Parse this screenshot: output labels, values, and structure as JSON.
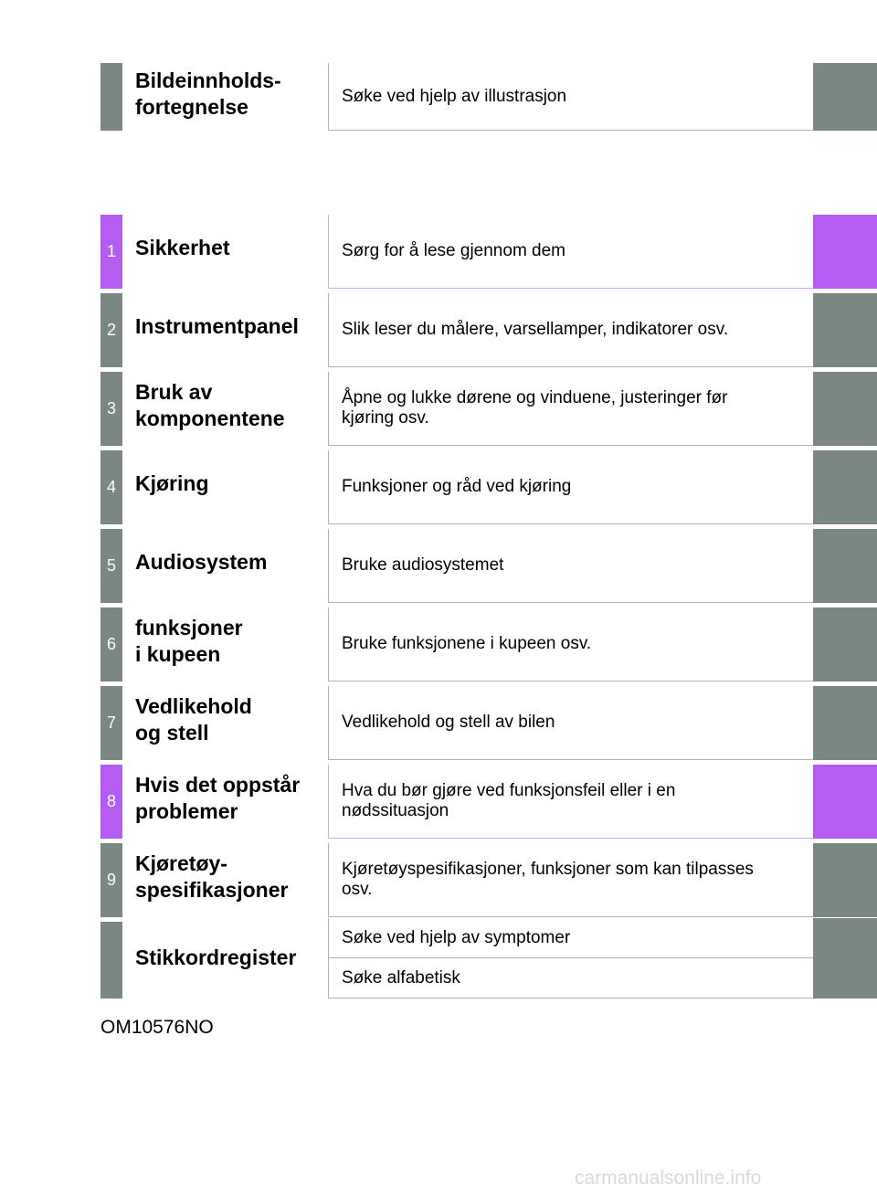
{
  "header": {
    "title": "Bildeinnholds-\nfortegnelse",
    "desc": "Søke ved hjelp av illustrasjon"
  },
  "chapters": [
    {
      "num": "1",
      "title": "Sikkerhet",
      "desc": "Sørg for å lese gjennom dem",
      "accent": true
    },
    {
      "num": "2",
      "title": "Instrumentpanel",
      "desc": "Slik leser du målere, varsellamper, indikatorer osv.",
      "accent": false
    },
    {
      "num": "3",
      "title": "Bruk av\nkomponentene",
      "desc": "Åpne og lukke dørene og vinduene, justeringer før\nkjøring osv.",
      "accent": false
    },
    {
      "num": "4",
      "title": "Kjøring",
      "desc": "Funksjoner og råd ved kjøring",
      "accent": false
    },
    {
      "num": "5",
      "title": "Audiosystem",
      "desc": "Bruke audiosystemet",
      "accent": false
    },
    {
      "num": "6",
      "title": "funksjoner\ni kupeen",
      "desc": "Bruke funksjonene i kupeen osv.",
      "accent": false
    },
    {
      "num": "7",
      "title": "Vedlikehold\nog stell",
      "desc": "Vedlikehold og stell av bilen",
      "accent": false
    },
    {
      "num": "8",
      "title": "Hvis det oppstår\nproblemer",
      "desc": "Hva du bør gjøre ved funksjonsfeil eller i en\nnødssituasjon",
      "accent": true
    },
    {
      "num": "9",
      "title": "Kjøretøy-\nspesifikasjoner",
      "desc": "Kjøretøyspesifikasjoner, funksjoner som kan tilpasses\nosv.",
      "accent": false
    }
  ],
  "index": {
    "title": "Stikkordregister",
    "symptoms": "Søke ved hjelp av symptomer",
    "alphabetical": "Søke alfabetisk"
  },
  "doc_code": "OM10576NO",
  "watermark": "carmanualsonline.info",
  "colors": {
    "gray": "#7b8782",
    "accent": "#b35ef0"
  }
}
